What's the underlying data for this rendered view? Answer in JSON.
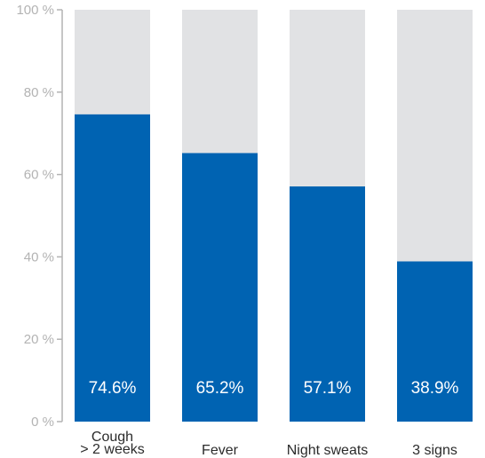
{
  "chart_data": {
    "type": "bar",
    "stacked_background": true,
    "categories": [
      [
        "Cough",
        "> 2 weeks"
      ],
      [
        "Fever"
      ],
      [
        "Night sweats"
      ],
      [
        "3 signs"
      ]
    ],
    "values": [
      74.6,
      65.2,
      57.1,
      38.9
    ],
    "value_labels": [
      "74.6%",
      "65.2%",
      "57.1%",
      "38.9%"
    ],
    "ylim": [
      0,
      100
    ],
    "yticks": [
      0,
      20,
      40,
      60,
      80,
      100
    ],
    "ytick_labels": [
      "0 %",
      "20 %",
      "40 %",
      "60 %",
      "80 %",
      "100 %"
    ],
    "title": "",
    "xlabel": "",
    "ylabel": "",
    "grid": false,
    "legend": "none",
    "colors": {
      "bar": "#0063b2",
      "background_bar": "#e1e2e4",
      "axis": "#b3b3b3",
      "value_label": "#ffffff",
      "category_label": "#2b2b2b"
    }
  }
}
